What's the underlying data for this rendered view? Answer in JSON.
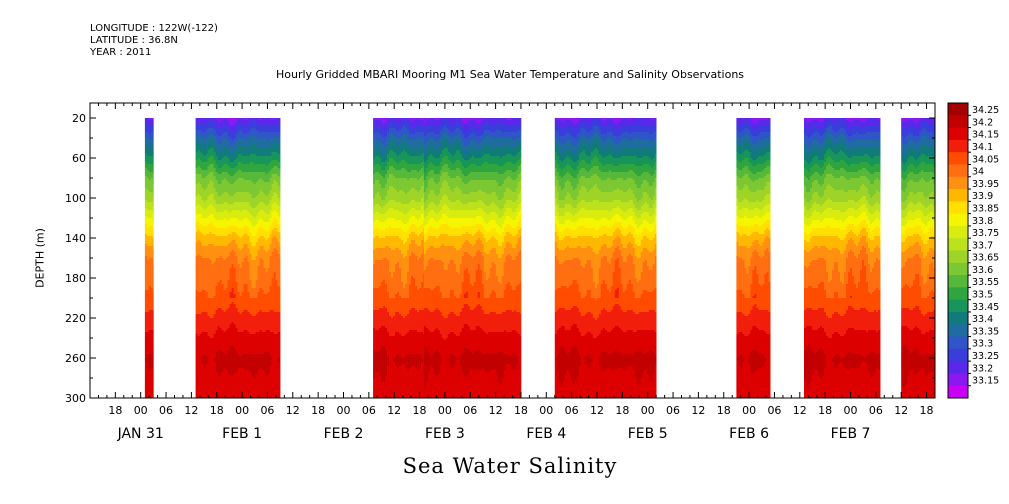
{
  "header": {
    "longitude": "LONGITUDE : 122W(-122)",
    "latitude": "LATITUDE : 36.8N",
    "year": "YEAR : 2011"
  },
  "title": "Hourly Gridded MBARI Mooring M1 Sea Water Temperature and Salinity Observations",
  "bottom_title": "Sea Water Salinity",
  "chart_data": {
    "type": "heatmap",
    "title": "Hourly Gridded MBARI Mooring M1 Sea Water Temperature and Salinity Observations",
    "xlabel": "",
    "ylabel": "DEPTH (m)",
    "y_axis": {
      "range": [
        300,
        5
      ],
      "inverted": true,
      "ticks": [
        20,
        60,
        100,
        140,
        180,
        220,
        260,
        300
      ]
    },
    "x_axis": {
      "range_hours": [
        "JAN 30 12:00",
        "FEB 7 20:00"
      ],
      "hour_tick_labels": [
        "18",
        "00",
        "06",
        "12",
        "18",
        "00",
        "06",
        "12",
        "18",
        "00",
        "06",
        "12",
        "18",
        "00",
        "06",
        "12",
        "18",
        "00",
        "06",
        "12",
        "18",
        "00",
        "06",
        "12",
        "18",
        "00",
        "06",
        "12",
        "18",
        "00",
        "06",
        "12",
        "18"
      ],
      "day_labels": [
        "JAN 31",
        "FEB  1",
        "FEB  2",
        "FEB  3",
        "FEB  4",
        "FEB  5",
        "FEB  6",
        "FEB  7"
      ]
    },
    "data_segments_hours_from_jan31_00": [
      [
        1,
        3
      ],
      [
        13,
        33
      ],
      [
        55,
        68
      ],
      [
        67,
        90
      ],
      [
        98,
        122
      ],
      [
        141,
        149
      ],
      [
        157,
        175
      ],
      [
        180,
        188
      ]
    ],
    "depth_range_of_data": [
      20,
      300
    ],
    "colorbar": {
      "levels": [
        34.25,
        34.2,
        34.15,
        34.1,
        34.05,
        34,
        33.95,
        33.9,
        33.85,
        33.8,
        33.75,
        33.7,
        33.65,
        33.6,
        33.55,
        33.5,
        33.45,
        33.4,
        33.35,
        33.3,
        33.25,
        33.2,
        33.15
      ],
      "labels": [
        "34.25",
        "34.2",
        "34.15",
        "34.1",
        "34.05",
        "34",
        "33.95",
        "33.9",
        "33.85",
        "33.8",
        "33.75",
        "33.7",
        "33.65",
        "33.6",
        "33.55",
        "33.5",
        "33.45",
        "33.4",
        "33.35",
        "33.3",
        "33.25",
        "33.2",
        "33.15"
      ],
      "colors": [
        "#a50000",
        "#c20000",
        "#dc0000",
        "#f01e0a",
        "#ff4d00",
        "#ff6e10",
        "#ff9010",
        "#ffb800",
        "#ffe000",
        "#f5f500",
        "#d8ec10",
        "#bce21e",
        "#9ed428",
        "#7cc832",
        "#56b83a",
        "#2fa540",
        "#17955a",
        "#117a7a",
        "#1f6ca0",
        "#2f55c8",
        "#3a3cdc",
        "#5a28ea",
        "#8a18f0",
        "#c800f5"
      ]
    },
    "salinity_depth_profile_approx": [
      {
        "depth": 20,
        "value": 33.2
      },
      {
        "depth": 40,
        "value": 33.35
      },
      {
        "depth": 60,
        "value": 33.47
      },
      {
        "depth": 80,
        "value": 33.6
      },
      {
        "depth": 100,
        "value": 33.68
      },
      {
        "depth": 120,
        "value": 33.8
      },
      {
        "depth": 140,
        "value": 33.92
      },
      {
        "depth": 160,
        "value": 34.0
      },
      {
        "depth": 180,
        "value": 34.03
      },
      {
        "depth": 200,
        "value": 34.07
      },
      {
        "depth": 220,
        "value": 34.12
      },
      {
        "depth": 240,
        "value": 34.17
      },
      {
        "depth": 260,
        "value": 34.21
      },
      {
        "depth": 280,
        "value": 34.19
      },
      {
        "depth": 300,
        "value": 34.17
      }
    ]
  }
}
